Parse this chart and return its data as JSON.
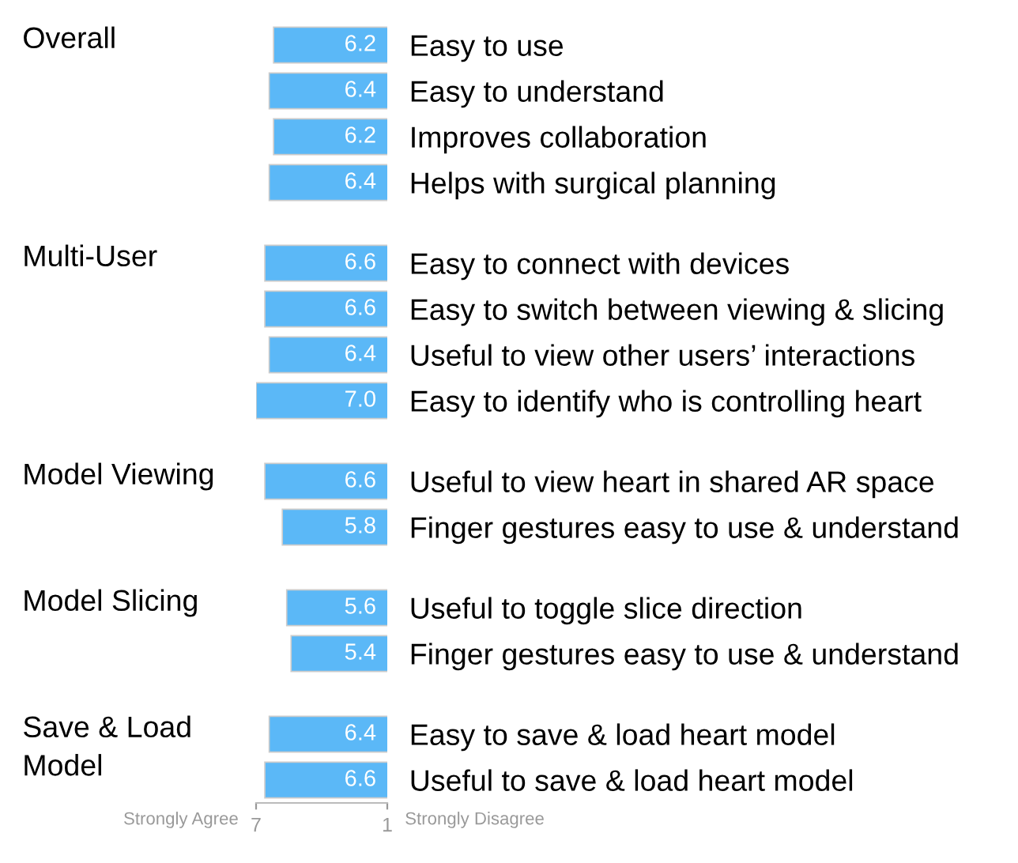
{
  "chart_data": [
    {
      "type": "bar",
      "orientation": "horizontal",
      "title": "Overall",
      "categories": [
        "Easy to use",
        "Easy to understand",
        "Improves collaboration",
        "Helps with surgical planning"
      ],
      "values": [
        6.2,
        6.4,
        6.2,
        6.4
      ],
      "value_labels": [
        "6.2",
        "6.4",
        "6.2",
        "6.4"
      ],
      "color": "#5bb8f7",
      "xlim": [
        7,
        1
      ],
      "grid": false
    },
    {
      "type": "bar",
      "orientation": "horizontal",
      "title": "Multi-User",
      "categories": [
        "Easy to connect with devices",
        "Easy to switch between viewing & slicing",
        "Useful to view other users’ interactions",
        "Easy to identify who is controlling heart"
      ],
      "values": [
        6.6,
        6.6,
        6.4,
        7.0
      ],
      "value_labels": [
        "6.6",
        "6.6",
        "6.4",
        "7.0"
      ],
      "color": "#5bb8f7",
      "xlim": [
        7,
        1
      ],
      "grid": false
    },
    {
      "type": "bar",
      "orientation": "horizontal",
      "title": "Model Viewing",
      "categories": [
        "Useful to view heart in shared AR space",
        "Finger gestures easy to use & understand"
      ],
      "values": [
        6.6,
        5.8
      ],
      "value_labels": [
        "6.6",
        "5.8"
      ],
      "color": "#5bb8f7",
      "xlim": [
        7,
        1
      ],
      "grid": false
    },
    {
      "type": "bar",
      "orientation": "horizontal",
      "title": "Model Slicing",
      "categories": [
        "Useful to toggle slice direction",
        "Finger gestures easy to use & understand"
      ],
      "values": [
        5.6,
        5.4
      ],
      "value_labels": [
        "5.6",
        "5.4"
      ],
      "color": "#5bb8f7",
      "xlim": [
        7,
        1
      ],
      "grid": false
    },
    {
      "type": "bar",
      "orientation": "horizontal",
      "title": "Save & Load Model",
      "categories": [
        "Easy to save & load heart model",
        "Useful to save & load heart model"
      ],
      "values": [
        6.4,
        6.6
      ],
      "value_labels": [
        "6.4",
        "6.6"
      ],
      "color": "#5bb8f7",
      "xlim": [
        7,
        1
      ],
      "xticks": [
        7,
        1
      ],
      "annotations": [
        "Strongly Agree",
        "Strongly Disagree"
      ],
      "grid": false
    }
  ]
}
